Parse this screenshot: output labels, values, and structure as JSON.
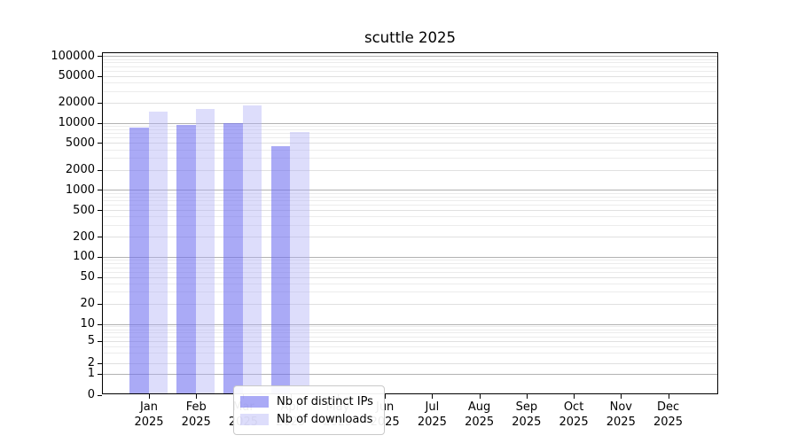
{
  "chart_data": {
    "type": "bar",
    "title": "scuttle 2025",
    "yscale": "symlog",
    "ylim": [
      0,
      100000
    ],
    "grid": "both",
    "legend_position": "inside-bottom-left-of-center",
    "x_months": [
      "Jan",
      "Feb",
      "Mar",
      "Apr",
      "May",
      "Jun",
      "Jul",
      "Aug",
      "Sep",
      "Oct",
      "Nov",
      "Dec"
    ],
    "x_year": "2025",
    "y_ticks": [
      0,
      1,
      2,
      5,
      10,
      20,
      50,
      100,
      200,
      500,
      1000,
      2000,
      5000,
      10000,
      20000,
      50000,
      100000
    ],
    "series": [
      {
        "name": "Nb of distinct IPs",
        "color": "rgba(108, 108, 240, 0.58)",
        "values": [
          8100,
          9000,
          9400,
          4350,
          0,
          0,
          0,
          0,
          0,
          0,
          0,
          0
        ]
      },
      {
        "name": "Nb of downloads",
        "color": "rgba(175, 175, 245, 0.42)",
        "values": [
          14200,
          15500,
          17400,
          7000,
          0,
          0,
          0,
          0,
          0,
          0,
          0,
          0
        ]
      }
    ]
  },
  "colors": {
    "spine": "#000000",
    "grid_major": "#b2b2b2",
    "grid_mid": "#e0e0e0",
    "grid_minor": "#ececec",
    "text": "#000000"
  }
}
